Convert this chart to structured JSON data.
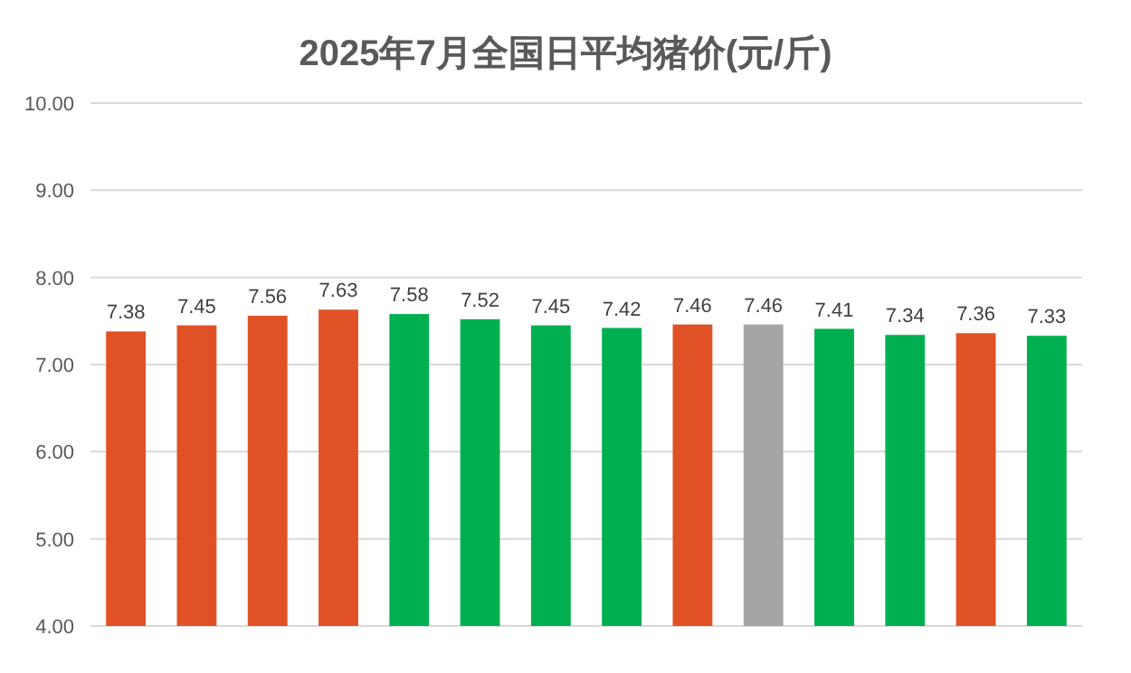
{
  "chart_data": {
    "type": "bar",
    "title": "2025年7月全国日平均猪价(元/斤)",
    "categories": [
      null,
      null,
      null,
      null,
      null,
      null,
      null,
      null,
      null,
      null,
      null,
      null,
      null,
      null
    ],
    "values": [
      7.38,
      7.45,
      7.56,
      7.63,
      7.58,
      7.52,
      7.45,
      7.42,
      7.46,
      7.46,
      7.41,
      7.34,
      7.36,
      7.33
    ],
    "colors": [
      "#e05226",
      "#e05226",
      "#e05226",
      "#e05226",
      "#00b050",
      "#00b050",
      "#00b050",
      "#00b050",
      "#e05226",
      "#a5a5a5",
      "#00b050",
      "#00b050",
      "#e05226",
      "#00b050"
    ],
    "ylim": [
      4,
      10
    ],
    "yticks": [
      {
        "value": 4,
        "label": "4.00"
      },
      {
        "value": 5,
        "label": "5.00"
      },
      {
        "value": 6,
        "label": "6.00"
      },
      {
        "value": 7,
        "label": "7.00"
      },
      {
        "value": 8,
        "label": "8.00"
      },
      {
        "value": 9,
        "label": "9.00"
      },
      {
        "value": 10,
        "label": "10.00"
      }
    ],
    "grid": "y",
    "data_labels": true
  }
}
